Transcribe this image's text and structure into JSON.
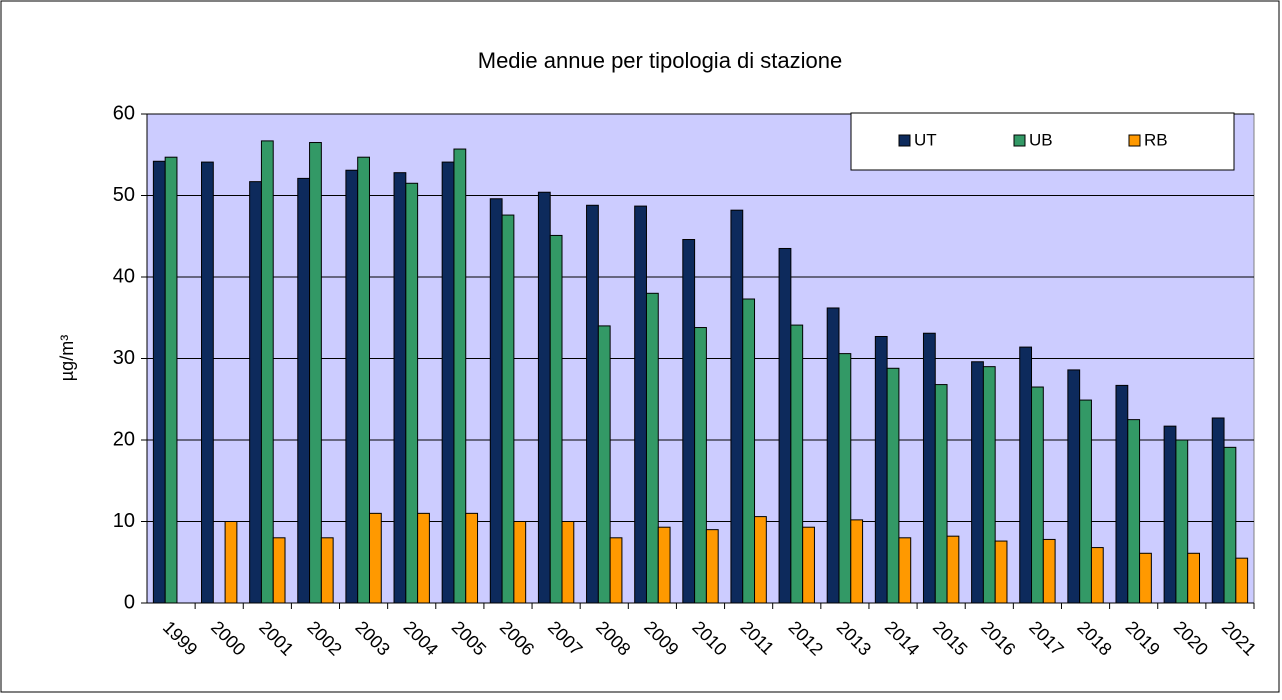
{
  "chart_data": {
    "type": "bar",
    "title": "Medie annue per tipologia di stazione",
    "y_label": "µg/m³",
    "categories": [
      "1999",
      "2000",
      "2001",
      "2002",
      "2003",
      "2004",
      "2005",
      "2006",
      "2007",
      "2008",
      "2009",
      "2010",
      "2011",
      "2012",
      "2013",
      "2014",
      "2015",
      "2016",
      "2017",
      "2018",
      "2019",
      "2020",
      "2021"
    ],
    "series": [
      {
        "name": "UT",
        "color": "#0d2a5c",
        "values": [
          54.2,
          54.1,
          51.7,
          52.1,
          53.1,
          52.8,
          54.1,
          49.6,
          50.4,
          48.8,
          48.7,
          44.6,
          48.2,
          43.5,
          36.2,
          32.7,
          33.1,
          29.6,
          31.4,
          28.6,
          26.7,
          21.7,
          22.7
        ]
      },
      {
        "name": "UB",
        "color": "#339966",
        "values": [
          54.7,
          null,
          56.7,
          56.5,
          54.7,
          51.5,
          55.7,
          47.6,
          45.1,
          34.0,
          38.0,
          33.8,
          37.3,
          34.1,
          30.6,
          28.8,
          26.8,
          29.0,
          26.5,
          24.9,
          22.5,
          20.0,
          19.1
        ]
      },
      {
        "name": "RB",
        "color": "#ff9900",
        "values": [
          null,
          10,
          8,
          8,
          11,
          11,
          11,
          10,
          10,
          8,
          9.3,
          9,
          10.6,
          9.3,
          10.2,
          8,
          8.2,
          7.6,
          7.8,
          6.8,
          6.1,
          6.1,
          5.5
        ]
      }
    ],
    "ylim": [
      0,
      60
    ],
    "yticks": [
      0,
      10,
      20,
      30,
      40,
      50,
      60
    ],
    "grid": true,
    "legend": "top-right",
    "plot_background": "#ccccff"
  }
}
